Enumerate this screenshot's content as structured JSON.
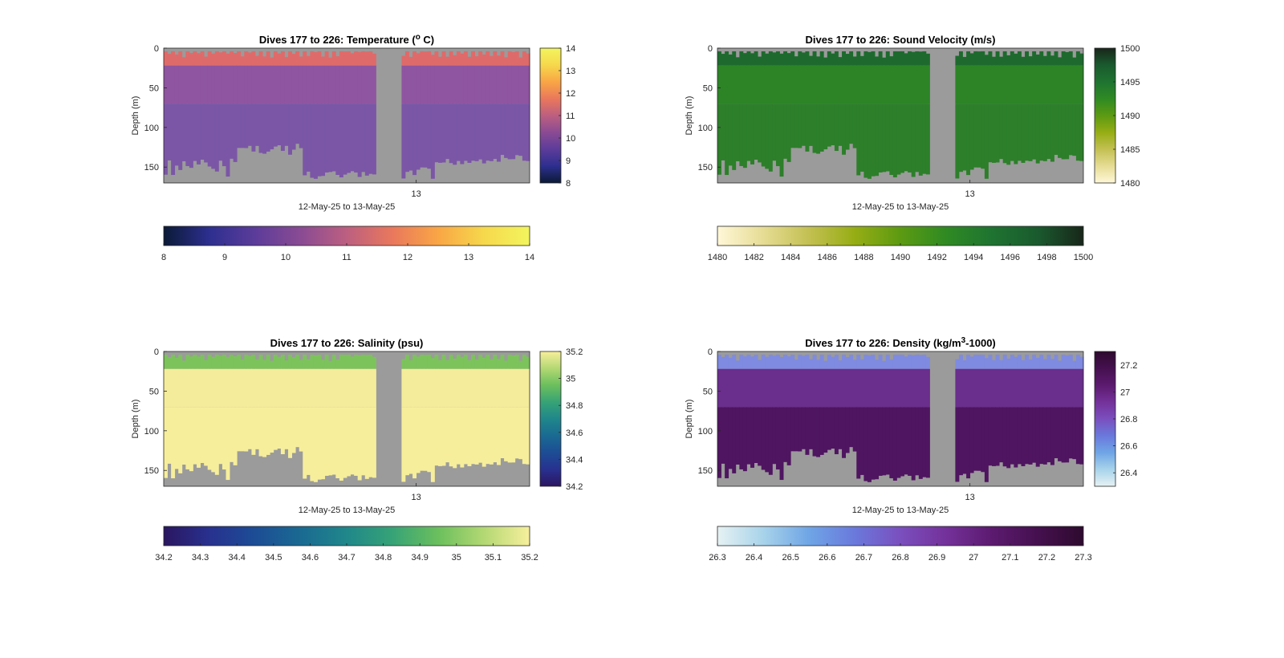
{
  "figure": {
    "background": "#ffffff",
    "no_data_color": "#9b9b9b"
  },
  "chart_data": [
    {
      "type": "heatmap",
      "id": "temperature",
      "title": "Dives 177 to 226: Temperature (",
      "title_sup": "o",
      "title_suffix": " C)",
      "ylabel": "Depth (m)",
      "xlabel": "12-May-25 to 13-May-25",
      "x_ticks": [
        "13"
      ],
      "y_ticks": [
        "0",
        "50",
        "100",
        "150"
      ],
      "y_tick_values": [
        0,
        50,
        100,
        150
      ],
      "ylim": [
        0,
        170
      ],
      "y_reversed": true,
      "colormap": [
        "#0b1a36",
        "#2d2f8f",
        "#5c3c9a",
        "#8a4b93",
        "#bc5f80",
        "#e9785c",
        "#f9a645",
        "#f6d84c",
        "#f2f55e"
      ],
      "field_colors": {
        "surface": "#de6b6a",
        "upper": "#8f55a0",
        "deep": "#7b56a6"
      },
      "clim": [
        8,
        14
      ],
      "colorbar_ticks": [
        "14",
        "13",
        "12",
        "11",
        "10",
        "9",
        "8"
      ],
      "colorbar_h_ticks": [
        "8",
        "9",
        "10",
        "11",
        "12",
        "13",
        "14"
      ],
      "gap": [
        0.58,
        0.64
      ]
    },
    {
      "type": "heatmap",
      "id": "sound_velocity",
      "title": "Dives 177 to 226: Sound Velocity (m/s)",
      "title_sup": "",
      "title_suffix": "",
      "ylabel": "Depth (m)",
      "xlabel": "12-May-25 to 13-May-25",
      "x_ticks": [
        "13"
      ],
      "y_ticks": [
        "0",
        "50",
        "100",
        "150"
      ],
      "y_tick_values": [
        0,
        50,
        100,
        150
      ],
      "ylim": [
        0,
        170
      ],
      "y_reversed": true,
      "colormap": [
        "#fff7d8",
        "#e6dc94",
        "#c3c052",
        "#96ad14",
        "#5c9a12",
        "#2f8a23",
        "#1f7331",
        "#1a5a2e",
        "#18261a"
      ],
      "field_colors": {
        "surface": "#1e6a2e",
        "upper": "#2c8426",
        "deep": "#2d7f2a"
      },
      "clim": [
        1480,
        1500
      ],
      "colorbar_ticks": [
        "1500",
        "1495",
        "1490",
        "1485",
        "1480"
      ],
      "colorbar_h_ticks": [
        "1480",
        "1482",
        "1484",
        "1486",
        "1488",
        "1490",
        "1492",
        "1494",
        "1496",
        "1498",
        "1500"
      ],
      "gap": [
        0.58,
        0.64
      ]
    },
    {
      "type": "heatmap",
      "id": "salinity",
      "title": "Dives 177 to 226: Salinity (psu)",
      "title_sup": "",
      "title_suffix": "",
      "ylabel": "Depth (m)",
      "xlabel": "12-May-25 to 13-May-25",
      "x_ticks": [
        "13"
      ],
      "y_ticks": [
        "0",
        "50",
        "100",
        "150"
      ],
      "y_tick_values": [
        0,
        50,
        100,
        150
      ],
      "ylim": [
        0,
        170
      ],
      "y_reversed": true,
      "colormap": [
        "#2a1660",
        "#28318f",
        "#1c4d95",
        "#1a6a92",
        "#20878a",
        "#37a376",
        "#6bbf5d",
        "#b3d873",
        "#f7ef9c"
      ],
      "field_colors": {
        "surface": "#7cc35c",
        "upper": "#f4ec9a",
        "deep": "#f6ee9b"
      },
      "clim": [
        34.2,
        35.2
      ],
      "colorbar_ticks": [
        "35.2",
        "35",
        "34.8",
        "34.6",
        "34.4",
        "34.2"
      ],
      "colorbar_h_ticks": [
        "34.2",
        "34.3",
        "34.4",
        "34.5",
        "34.6",
        "34.7",
        "34.8",
        "34.9",
        "35",
        "35.1",
        "35.2"
      ],
      "gap": [
        0.58,
        0.64
      ]
    },
    {
      "type": "heatmap",
      "id": "density",
      "title": "Dives 177 to 226: Density (kg/m",
      "title_sup": "3",
      "title_suffix": "-1000)",
      "ylabel": "Depth (m)",
      "xlabel": "12-May-25 to 13-May-25",
      "x_ticks": [
        "13"
      ],
      "y_ticks": [
        "0",
        "50",
        "100",
        "150"
      ],
      "y_tick_values": [
        0,
        50,
        100,
        150
      ],
      "ylim": [
        0,
        170
      ],
      "y_reversed": true,
      "colormap": [
        "#e6f2f3",
        "#a8d3ea",
        "#6fa5e6",
        "#6a79dc",
        "#7a4fbe",
        "#74319a",
        "#5c1a6f",
        "#45104f",
        "#2e0a2e"
      ],
      "field_colors": {
        "surface": "#7f8be0",
        "upper": "#6a2e8c",
        "deep": "#4f1560"
      },
      "clim": [
        26.3,
        27.3
      ],
      "colorbar_ticks": [
        "27.2",
        "27",
        "26.8",
        "26.6",
        "26.4"
      ],
      "colorbar_h_ticks": [
        "26.3",
        "26.4",
        "26.5",
        "26.6",
        "26.7",
        "26.8",
        "26.9",
        "27",
        "27.1",
        "27.2",
        "27.3"
      ],
      "gap": [
        0.58,
        0.64
      ]
    }
  ]
}
